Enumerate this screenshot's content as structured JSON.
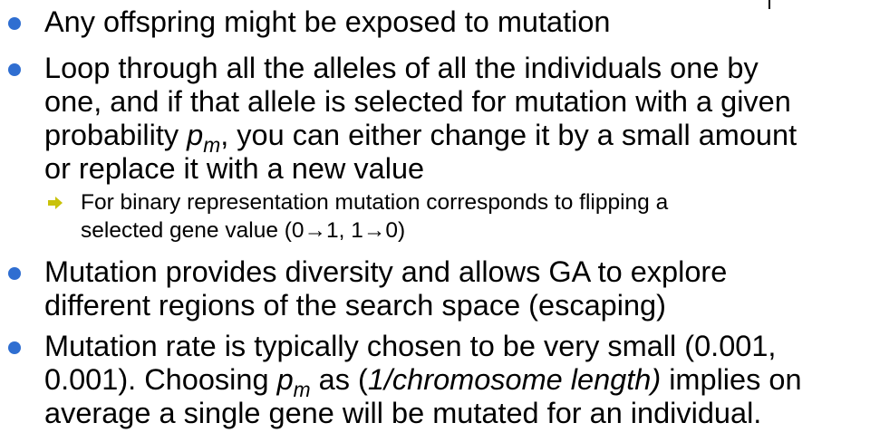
{
  "bullets": [
    {
      "lines": [
        "Any offspring might be exposed to mutation"
      ]
    },
    {
      "l1": "Loop through all the alleles of all the individuals one by",
      "l2": "one, and if that allele is selected for mutation with a given",
      "l3_pre": "probability ",
      "pm_p": "p",
      "pm_m": "m",
      "l3_post": ", you can either change it by a small amount",
      "l4": "or replace it with a new value"
    },
    {
      "lines": [
        "Mutation provides diversity and allows GA to explore",
        "different regions of the search space (escaping)"
      ]
    },
    {
      "l1": "Mutation rate is typically chosen to be very small (0.001,",
      "l2_pre": "0.001). Choosing ",
      "pm_p": "p",
      "pm_m": "m",
      "l2_mid": " as (",
      "l2_it": "1/chromosome length)",
      "l2_post": " implies on",
      "l3": "average a single gene will be mutated for an individual."
    }
  ],
  "subbullet": {
    "l1": "For binary representation mutation corresponds to flipping a",
    "l2": "selected gene value (0→1, 1→0)"
  },
  "colors": {
    "bullet": "#2f6ed1",
    "sub_arrow": "#c9c20a"
  }
}
